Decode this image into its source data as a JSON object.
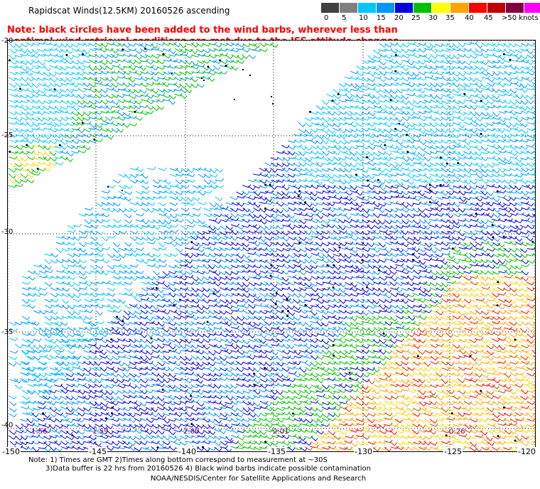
{
  "title": "Rapidscat Winds(12.5KM) 20160526 ascending",
  "note_lines": [
    "Note: black circles have been added to the wind barbs, wherever less than",
    "optimal wind retrieval conditions are met due to the ISS attitude changes."
  ],
  "scale": {
    "labels": [
      "0",
      "5",
      "10",
      "15",
      "20",
      "25",
      "30",
      "35",
      "40",
      "45",
      ">50 knots"
    ],
    "colors": [
      "#404040",
      "#808080",
      "#00c8ff",
      "#0096ff",
      "#0000e0",
      "#00c000",
      "#ffff00",
      "#ffa500",
      "#ff0000",
      "#c00000",
      "#800040",
      "#ff00ff",
      "#800080"
    ]
  },
  "lat_labels": [
    "-20",
    "-25",
    "-30",
    "-35",
    "-40"
  ],
  "lon_labels": [
    "-150",
    "-145",
    "-140",
    "-135",
    "-130",
    "-125",
    "-120"
  ],
  "time_labels": [
    "1:56",
    "1:59",
    "2:00",
    "2:01",
    "0:26"
  ],
  "footer": {
    "line1": "Note: 1) Times are GMT 2)Times along bottom correspond to measurement at ~30S",
    "line2": "3)Data buffer is 22 hrs from 20160526 4) Black wind barbs indicate possible contamination",
    "line3": "NOAA/NESDIS/Center for Satellite Applications and Research"
  }
}
